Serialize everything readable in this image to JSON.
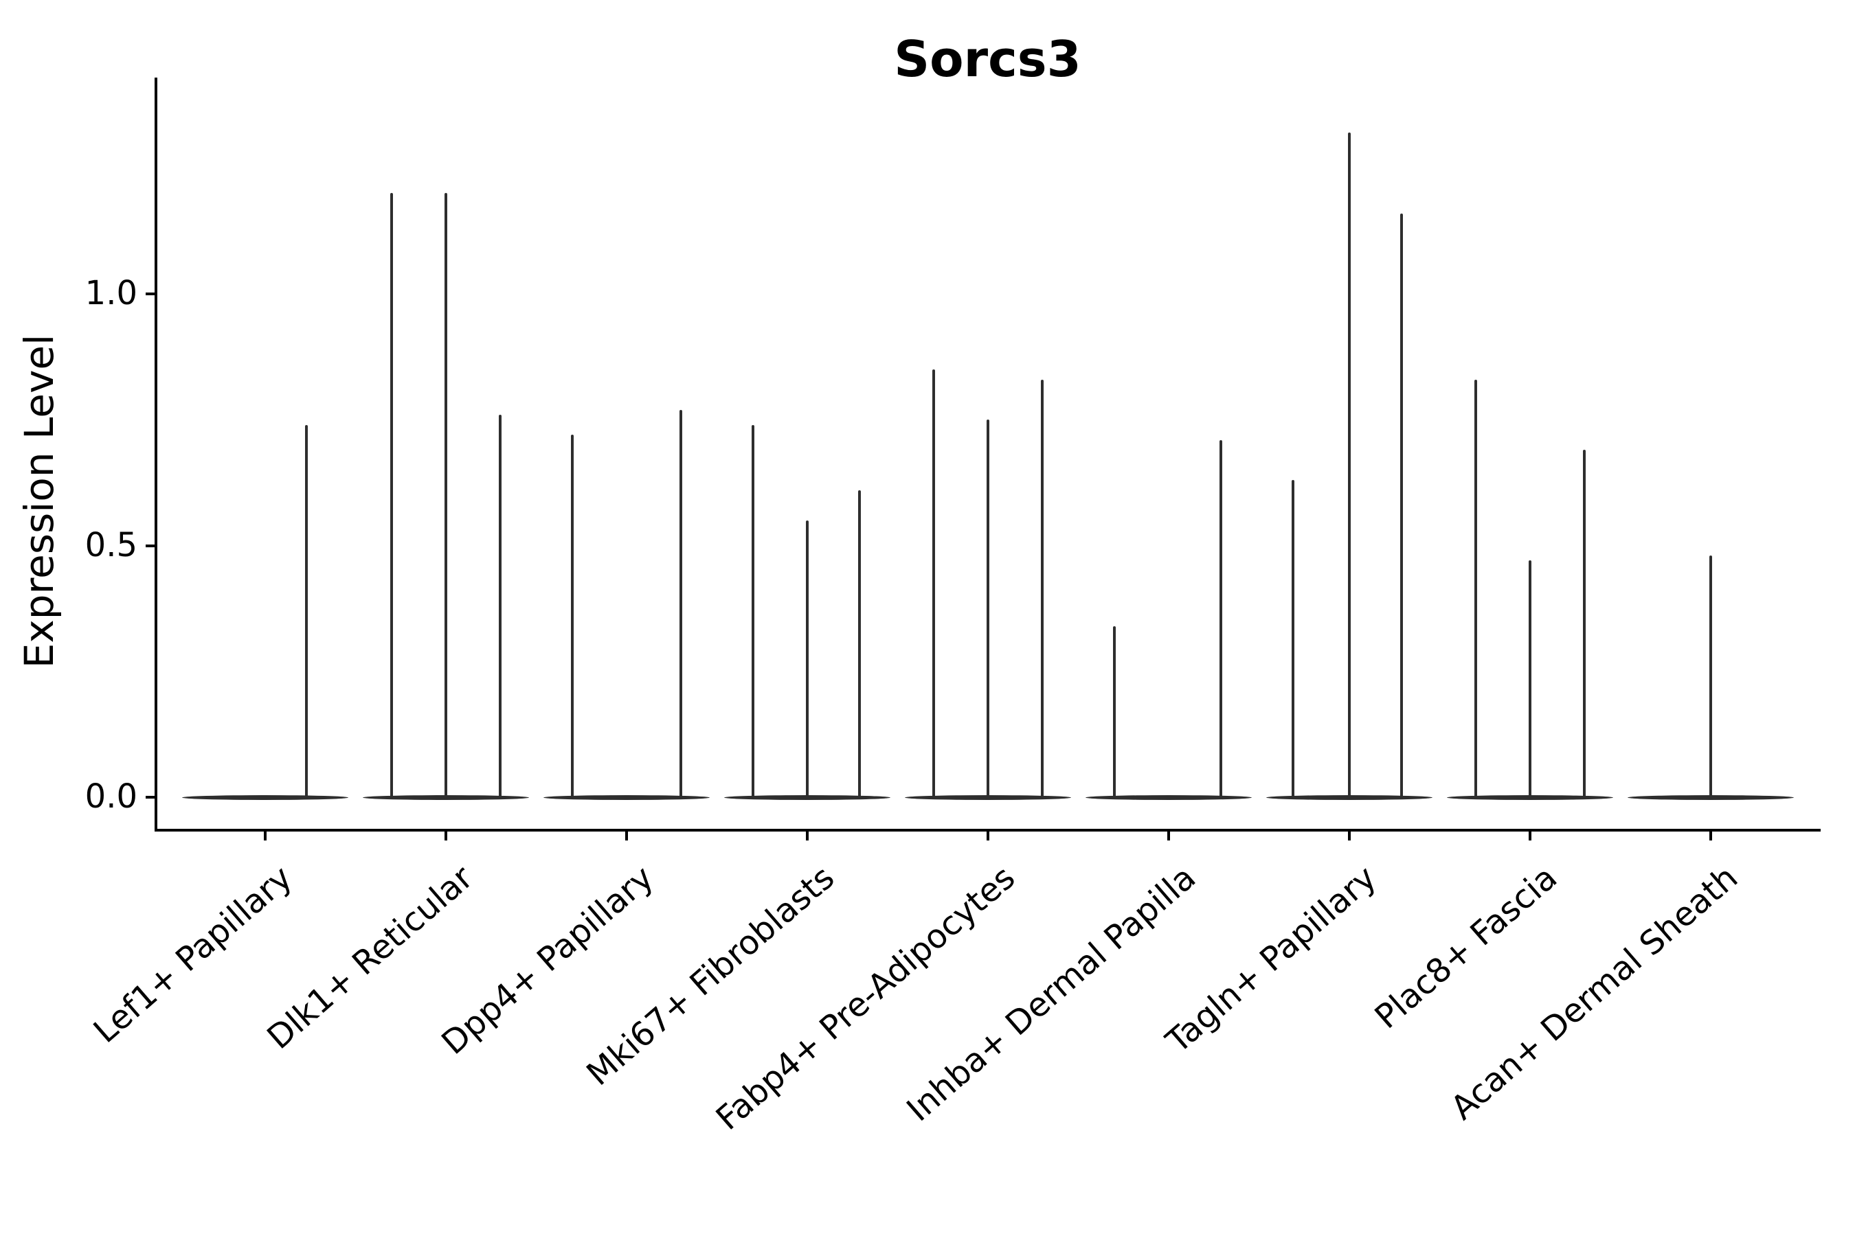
{
  "figure": {
    "title": "Sorcs3"
  },
  "chart_data": {
    "type": "violin",
    "title": "Sorcs3",
    "xlabel": "",
    "ylabel": "Expression Level",
    "ylim": [
      -0.07,
      1.43
    ],
    "yticks": [
      0.0,
      0.5,
      1.0
    ],
    "grid": false,
    "legend": "none",
    "background": "#ffffff",
    "line_color": "#2e2e2e",
    "spine_color": "#000000",
    "categories": [
      "Lef1+ Papillary",
      "Dlk1+ Reticular",
      "Dpp4+ Papillary",
      "Mki67+ Fibroblasts",
      "Fabp4+ Pre-Adipocytes",
      "Inhba+ Dermal Papilla",
      "Tagln+ Papillary",
      "Plac8+ Fascia",
      "Acan+ Dermal Sheath"
    ],
    "violins": [
      {
        "category": "Lef1+ Papillary",
        "spikes": [
          {
            "offset": 0.23,
            "max": 0.74
          }
        ]
      },
      {
        "category": "Dlk1+ Reticular",
        "spikes": [
          {
            "offset": -0.3,
            "max": 1.2
          },
          {
            "offset": 0.0,
            "max": 1.2
          },
          {
            "offset": 0.3,
            "max": 0.76
          }
        ]
      },
      {
        "category": "Dpp4+ Papillary",
        "spikes": [
          {
            "offset": -0.3,
            "max": 0.72
          },
          {
            "offset": 0.3,
            "max": 0.77
          }
        ]
      },
      {
        "category": "Mki67+ Fibroblasts",
        "spikes": [
          {
            "offset": -0.3,
            "max": 0.74
          },
          {
            "offset": 0.0,
            "max": 0.55
          },
          {
            "offset": 0.29,
            "max": 0.61
          }
        ]
      },
      {
        "category": "Fabp4+ Pre-Adipocytes",
        "spikes": [
          {
            "offset": -0.3,
            "max": 0.85
          },
          {
            "offset": 0.0,
            "max": 0.75
          },
          {
            "offset": 0.3,
            "max": 0.83
          }
        ]
      },
      {
        "category": "Inhba+ Dermal Papilla",
        "spikes": [
          {
            "offset": -0.3,
            "max": 0.34
          },
          {
            "offset": 0.29,
            "max": 0.71
          }
        ]
      },
      {
        "category": "Tagln+ Papillary",
        "spikes": [
          {
            "offset": -0.31,
            "max": 0.63
          },
          {
            "offset": 0.0,
            "max": 1.32
          },
          {
            "offset": 0.29,
            "max": 1.16
          }
        ]
      },
      {
        "category": "Plac8+ Fascia",
        "spikes": [
          {
            "offset": -0.3,
            "max": 0.83
          },
          {
            "offset": 0.0,
            "max": 0.47
          },
          {
            "offset": 0.3,
            "max": 0.69
          }
        ]
      },
      {
        "category": "Acan+ Dermal Sheath",
        "spikes": [
          {
            "offset": 0.0,
            "max": 0.48
          }
        ]
      }
    ]
  }
}
